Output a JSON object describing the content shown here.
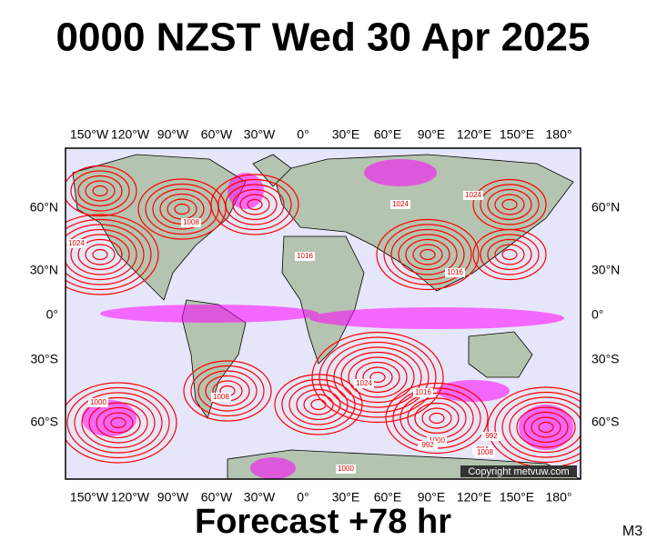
{
  "title": "0000 NZST Wed 30 Apr 2025",
  "map": {
    "top_labels": [
      "150°W",
      "120°W",
      "90°W",
      "60°W",
      "30°W",
      "0°",
      "30°E",
      "60°E",
      "90°E",
      "120°E",
      "150°E",
      "180°"
    ],
    "bottom_labels": [
      "150°W",
      "120°W",
      "90°W",
      "60°W",
      "30°W",
      "0°",
      "30°E",
      "60°E",
      "90°E",
      "120°E",
      "150°E",
      "180°"
    ],
    "left_labels": [
      "60°N",
      "30°N",
      "0°",
      "30°S",
      "60°S"
    ],
    "right_labels": [
      "60°N",
      "30°N",
      "0°",
      "30°S",
      "60°S"
    ],
    "isobar_labels": [
      "1024",
      "1016",
      "1008",
      "1024",
      "1016",
      "1000",
      "1008",
      "1024",
      "1016",
      "1000",
      "992",
      "984",
      "1008",
      "1024",
      "1000",
      "992"
    ],
    "copyright": "Copyright metvuw.com"
  },
  "footer": {
    "forecast": "Forecast +78 hr",
    "model": "M3"
  }
}
